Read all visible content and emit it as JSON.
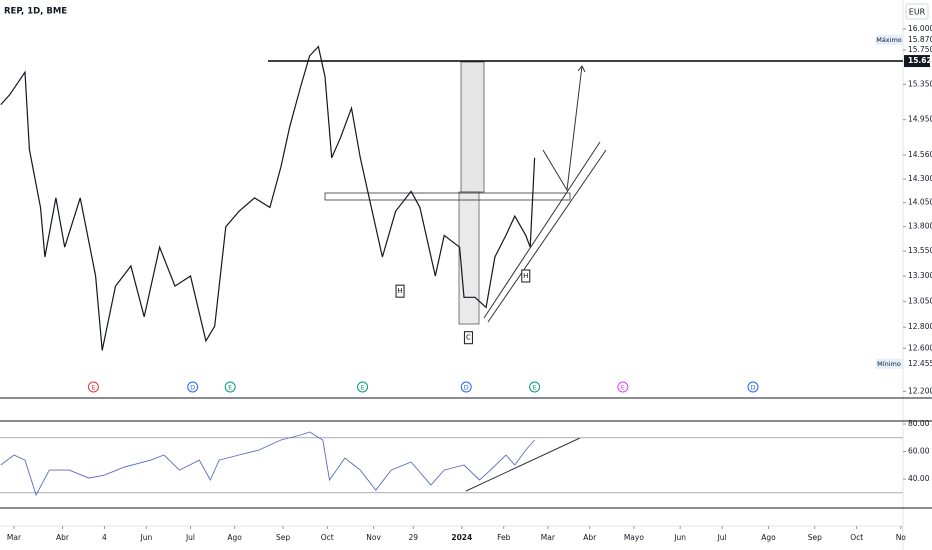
{
  "header": "REP, 1D, BME",
  "currency": "EUR",
  "chart_data": [
    {
      "type": "line",
      "name": "price",
      "color": "#131722",
      "log_scale": true,
      "x": [
        -6,
        -2,
        5,
        7,
        12,
        14,
        19,
        23,
        30,
        37,
        40,
        46,
        53,
        59,
        66,
        73,
        80,
        87,
        91,
        96,
        102,
        109,
        116,
        121,
        125,
        130,
        134,
        138,
        141,
        144,
        148,
        153,
        157,
        161,
        167,
        173,
        180,
        184,
        191,
        195,
        202,
        204,
        209,
        214,
        218,
        223,
        227,
        232,
        234,
        236
      ],
      "values": [
        15.12,
        15.23,
        15.49,
        14.62,
        14.0,
        13.49,
        14.1,
        13.59,
        14.1,
        13.3,
        12.58,
        13.2,
        13.4,
        12.9,
        13.59,
        13.2,
        13.3,
        12.67,
        12.81,
        13.8,
        13.96,
        14.1,
        14.0,
        14.43,
        14.87,
        15.33,
        15.68,
        15.79,
        15.44,
        14.53,
        14.75,
        15.08,
        14.53,
        14.1,
        13.49,
        13.96,
        14.17,
        14.0,
        13.3,
        13.71,
        13.59,
        13.09,
        13.09,
        12.99,
        13.49,
        13.71,
        13.91,
        13.71,
        13.59,
        14.53
      ],
      "xlim": [
        -6.35,
        403
      ],
      "ylim": [
        12.14,
        16.35
      ],
      "xticks": [
        {
          "value": 0,
          "label": "Mar"
        },
        {
          "value": 22,
          "label": "Abr"
        },
        {
          "value": 41,
          "label": "4"
        },
        {
          "value": 60,
          "label": "Jun"
        },
        {
          "value": 80,
          "label": "Jul"
        },
        {
          "value": 100,
          "label": "Ago"
        },
        {
          "value": 122,
          "label": "Sep"
        },
        {
          "value": 142,
          "label": "Oct"
        },
        {
          "value": 163,
          "label": "Nov"
        },
        {
          "value": 181,
          "label": "29"
        },
        {
          "value": 203,
          "label": "2024"
        },
        {
          "value": 222,
          "label": "Feb"
        },
        {
          "value": 242,
          "label": "Mar"
        },
        {
          "value": 261,
          "label": "Abr"
        },
        {
          "value": 281,
          "label": "Mayo"
        },
        {
          "value": 302,
          "label": "Jun"
        },
        {
          "value": 321,
          "label": "Jul"
        },
        {
          "value": 342,
          "label": "Ago"
        },
        {
          "value": 363,
          "label": "Sep"
        },
        {
          "value": 382,
          "label": "Oct"
        },
        {
          "value": 402,
          "label": "No"
        }
      ],
      "yticks": [
        {
          "value": 16,
          "label": "16.000"
        },
        {
          "value": 15.75,
          "label": "15.750"
        },
        {
          "value": 15.35,
          "label": "15.350"
        },
        {
          "value": 14.95,
          "label": "14.950"
        },
        {
          "value": 14.56,
          "label": "14.560"
        },
        {
          "value": 14.3,
          "label": "14.300"
        },
        {
          "value": 14.05,
          "label": "14.050"
        },
        {
          "value": 13.8,
          "label": "13.800"
        },
        {
          "value": 13.55,
          "label": "13.550"
        },
        {
          "value": 13.3,
          "label": "13.300"
        },
        {
          "value": 13.05,
          "label": "13.050"
        },
        {
          "value": 12.8,
          "label": "12.800"
        },
        {
          "value": 12.6,
          "label": "12.600"
        },
        {
          "value": 12.2,
          "label": "12.200"
        }
      ],
      "max": {
        "name": "Máximo",
        "value": 15.87,
        "label": "15.870"
      },
      "min": {
        "name": "Mínimo",
        "value": 12.455,
        "label": "12.455"
      },
      "level": {
        "value": 15.62,
        "label": "15.620"
      },
      "events": [
        {
          "text": "E",
          "x": 36,
          "color": "#e53935"
        },
        {
          "text": "D",
          "x": 81,
          "color": "#2962ff"
        },
        {
          "text": "E",
          "x": 98,
          "color": "#089981"
        },
        {
          "text": "E",
          "x": 158,
          "color": "#089981"
        },
        {
          "text": "D",
          "x": 205,
          "color": "#2962ff"
        },
        {
          "text": "E",
          "x": 236,
          "color": "#089981"
        },
        {
          "text": "E",
          "x": 276,
          "color": "#e040fb"
        },
        {
          "text": "D",
          "x": 335,
          "color": "#2962ff"
        }
      ],
      "pattern_labels": [
        {
          "text": "H",
          "x": 175,
          "y": 13.15
        },
        {
          "text": "C",
          "x": 206,
          "y": 12.7
        },
        {
          "text": "H",
          "x": 232,
          "y": 13.3
        }
      ]
    },
    {
      "type": "line",
      "name": "rsi",
      "color": "#5b6bbf",
      "x": [
        -6,
        0,
        5,
        10,
        16,
        25,
        34,
        41,
        50,
        62,
        68,
        75,
        84,
        89,
        93,
        102,
        111,
        121,
        130,
        134,
        140,
        143,
        150,
        157,
        164,
        171,
        180,
        189,
        195,
        204,
        211,
        216,
        223,
        227,
        232,
        236
      ],
      "values": [
        50.2,
        57.5,
        53.8,
        28.4,
        46.5,
        46.5,
        40.7,
        42.9,
        48.7,
        53.8,
        57.5,
        46.5,
        53.8,
        39.3,
        53.8,
        57.5,
        61.1,
        68.4,
        72,
        74.2,
        68.4,
        39.3,
        55.3,
        46.5,
        32,
        46.5,
        52.4,
        35.6,
        46.5,
        50.2,
        39.3,
        46.5,
        57.5,
        50.2,
        61.1,
        68.4
      ],
      "ylim": [
        17.5,
        82.2
      ],
      "bands": [
        70,
        30
      ],
      "yticks": [
        {
          "value": 80,
          "label": "80.00"
        },
        {
          "value": 60,
          "label": "60.00"
        },
        {
          "value": 40,
          "label": "40.00"
        }
      ]
    }
  ]
}
